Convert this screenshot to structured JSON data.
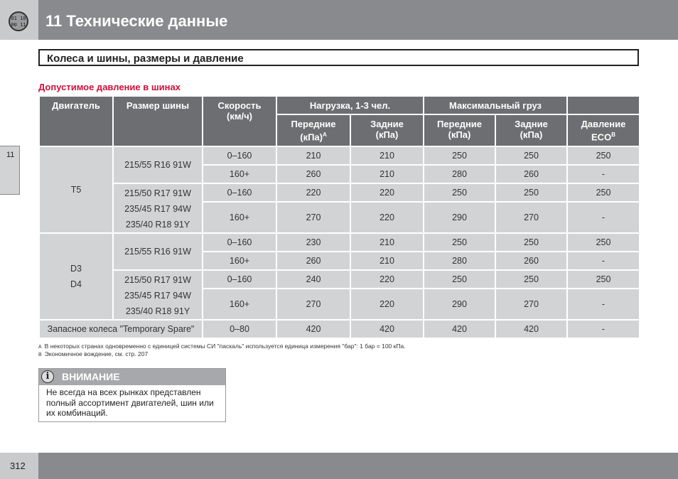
{
  "header": {
    "badge": "01 10\n00 11",
    "title": "11 Технические данные"
  },
  "section": "Колеса и шины, размеры и давление",
  "subtitle": "Допустимое давление в шинах",
  "side_tab": "11",
  "table": {
    "headers": {
      "engine": "Двигатель",
      "tire": "Размер шины",
      "speed": "Скорость (км/ч)",
      "load13": "Нагрузка, 1-3 чел.",
      "maxload": "Максимальный груз",
      "front": "Передние (кПа)",
      "front_sup": "A",
      "rear": "Задние (кПа)",
      "eco": "Давление ECO",
      "eco_sup": "B"
    },
    "groups": [
      {
        "engine": "T5",
        "tires": [
          [
            "215/55 R16 91W"
          ],
          [
            "215/50 R17 91W",
            "235/45 R17 94W",
            "235/40 R18 91Y"
          ]
        ],
        "rows": [
          [
            "0–160",
            "210",
            "210",
            "250",
            "250",
            "250"
          ],
          [
            "160+",
            "260",
            "210",
            "280",
            "260",
            "-"
          ],
          [
            "0–160",
            "220",
            "220",
            "250",
            "250",
            "250"
          ],
          [
            "160+",
            "270",
            "220",
            "290",
            "270",
            "-"
          ]
        ]
      },
      {
        "engine": "D3\nD4",
        "tires": [
          [
            "215/55 R16 91W"
          ],
          [
            "215/50 R17 91W",
            "235/45 R17 94W",
            "235/40 R18 91Y"
          ]
        ],
        "rows": [
          [
            "0–160",
            "230",
            "210",
            "250",
            "250",
            "250"
          ],
          [
            "160+",
            "260",
            "210",
            "280",
            "260",
            "-"
          ],
          [
            "0–160",
            "240",
            "220",
            "250",
            "250",
            "250"
          ],
          [
            "160+",
            "270",
            "220",
            "290",
            "270",
            "-"
          ]
        ]
      }
    ],
    "spare": [
      "Запасное колеса \"Temporary Spare\"",
      "0–80",
      "420",
      "420",
      "420",
      "420",
      "-"
    ]
  },
  "footnotes": [
    {
      "mark": "A",
      "text": "В некоторых странах одновременно с единицей системы СИ \"паскаль\" используется единица измерения \"бар\": 1 бар = 100 кПа."
    },
    {
      "mark": "B",
      "text": "Экономичное вождение, см. стр. 207"
    }
  ],
  "note": {
    "title": "ВНИМАНИЕ",
    "icon": "i",
    "text": "Не всегда на всех рынках представлен полный ассортимент двигателей, шин или их комбинаций."
  },
  "page_number": "312"
}
